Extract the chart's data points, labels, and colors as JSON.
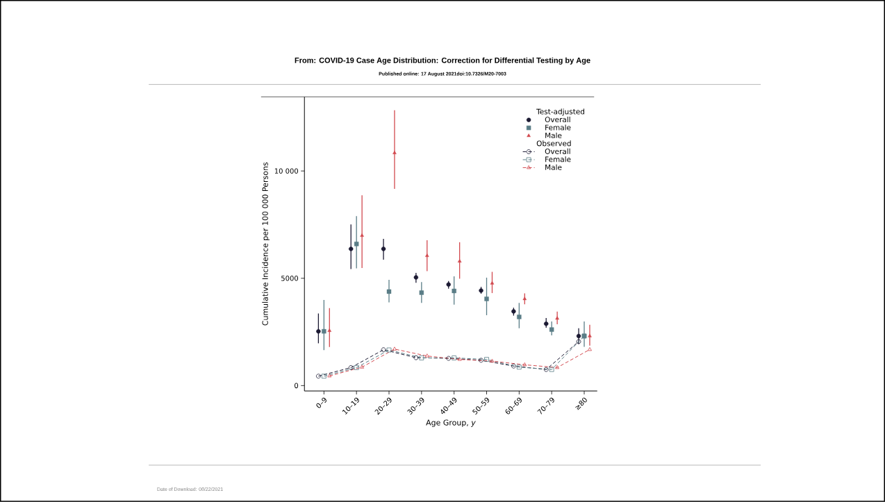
{
  "chart_data": {
    "type": "scatter",
    "title": "From: COVID-19 Case Age Distribution: Correction for Differential Testing by Age",
    "subtitle": "Published online: 17 August 2021doi:10.7326/M20-7003",
    "xlabel": "Age Group, *y*",
    "ylabel": "Cumulative Incidence per 100 000 Persons",
    "annotations": [
      "Test-adjusted",
      "Observed",
      "Date of Download: 08/22/2021"
    ],
    "categories": [
      "0–9",
      "10–19",
      "20–29",
      "30–39",
      "40–49",
      "50–59",
      "60–69",
      "70–79",
      "≥80"
    ],
    "ylim": [
      -250,
      13450
    ],
    "yticks": [
      0,
      5000,
      {
        "value": 10000,
        "label": "10 000"
      }
    ],
    "grid": false,
    "legend": "top right",
    "series": [
      {
        "name": "Overall",
        "marker": "circle",
        "color": "#1c1a33",
        "values": [
          2530,
          6370,
          6370,
          5040,
          4710,
          4430,
          3460,
          2880,
          2310
        ],
        "errors": [
          [
            1970,
            3360
          ],
          [
            5430,
            7510
          ],
          [
            5870,
            6840
          ],
          [
            4790,
            5250
          ],
          [
            4520,
            4870
          ],
          [
            4280,
            4600
          ],
          [
            3260,
            3630
          ],
          [
            2700,
            3150
          ],
          [
            1940,
            2670
          ]
        ]
      },
      {
        "name": "Female",
        "marker": "square",
        "color": "#5a7d87",
        "values": [
          2530,
          6600,
          4380,
          4330,
          4410,
          4040,
          3200,
          2610,
          2310
        ],
        "errors": [
          [
            1650,
            3990
          ],
          [
            5460,
            7900
          ],
          [
            3880,
            4930
          ],
          [
            3850,
            4820
          ],
          [
            3770,
            5090
          ],
          [
            3280,
            5030
          ],
          [
            2670,
            3850
          ],
          [
            2340,
            2990
          ],
          [
            1810,
            2990
          ]
        ]
      },
      {
        "name": "Male",
        "marker": "triangle",
        "color": "#d2494f",
        "values": [
          2560,
          6990,
          10840,
          6050,
          5790,
          4770,
          4040,
          3130,
          2310
        ],
        "errors": [
          [
            1800,
            3610
          ],
          [
            5480,
            8870
          ],
          [
            9170,
            12830
          ],
          [
            5330,
            6770
          ],
          [
            4980,
            6680
          ],
          [
            4310,
            5300
          ],
          [
            3790,
            4300
          ],
          [
            2860,
            3450
          ],
          [
            1860,
            2830
          ]
        ]
      },
      {
        "name": "Overall",
        "type": "line",
        "marker": "circle",
        "line_style": "dashed",
        "color": "#1c1a33",
        "values": [
          440,
          840,
          1670,
          1300,
          1270,
          1180,
          910,
          750,
          2050
        ]
      },
      {
        "name": "Female",
        "type": "line",
        "marker": "square",
        "line_style": "dashed",
        "color": "#5a7d87",
        "values": [
          440,
          840,
          1660,
          1290,
          1290,
          1220,
          860,
          750,
          2310
        ]
      },
      {
        "name": "Male",
        "type": "line",
        "marker": "triangle",
        "line_style": "dashed",
        "color": "#d2494f",
        "values": [
          450,
          860,
          1700,
          1380,
          1220,
          1140,
          970,
          840,
          1680
        ]
      }
    ]
  }
}
